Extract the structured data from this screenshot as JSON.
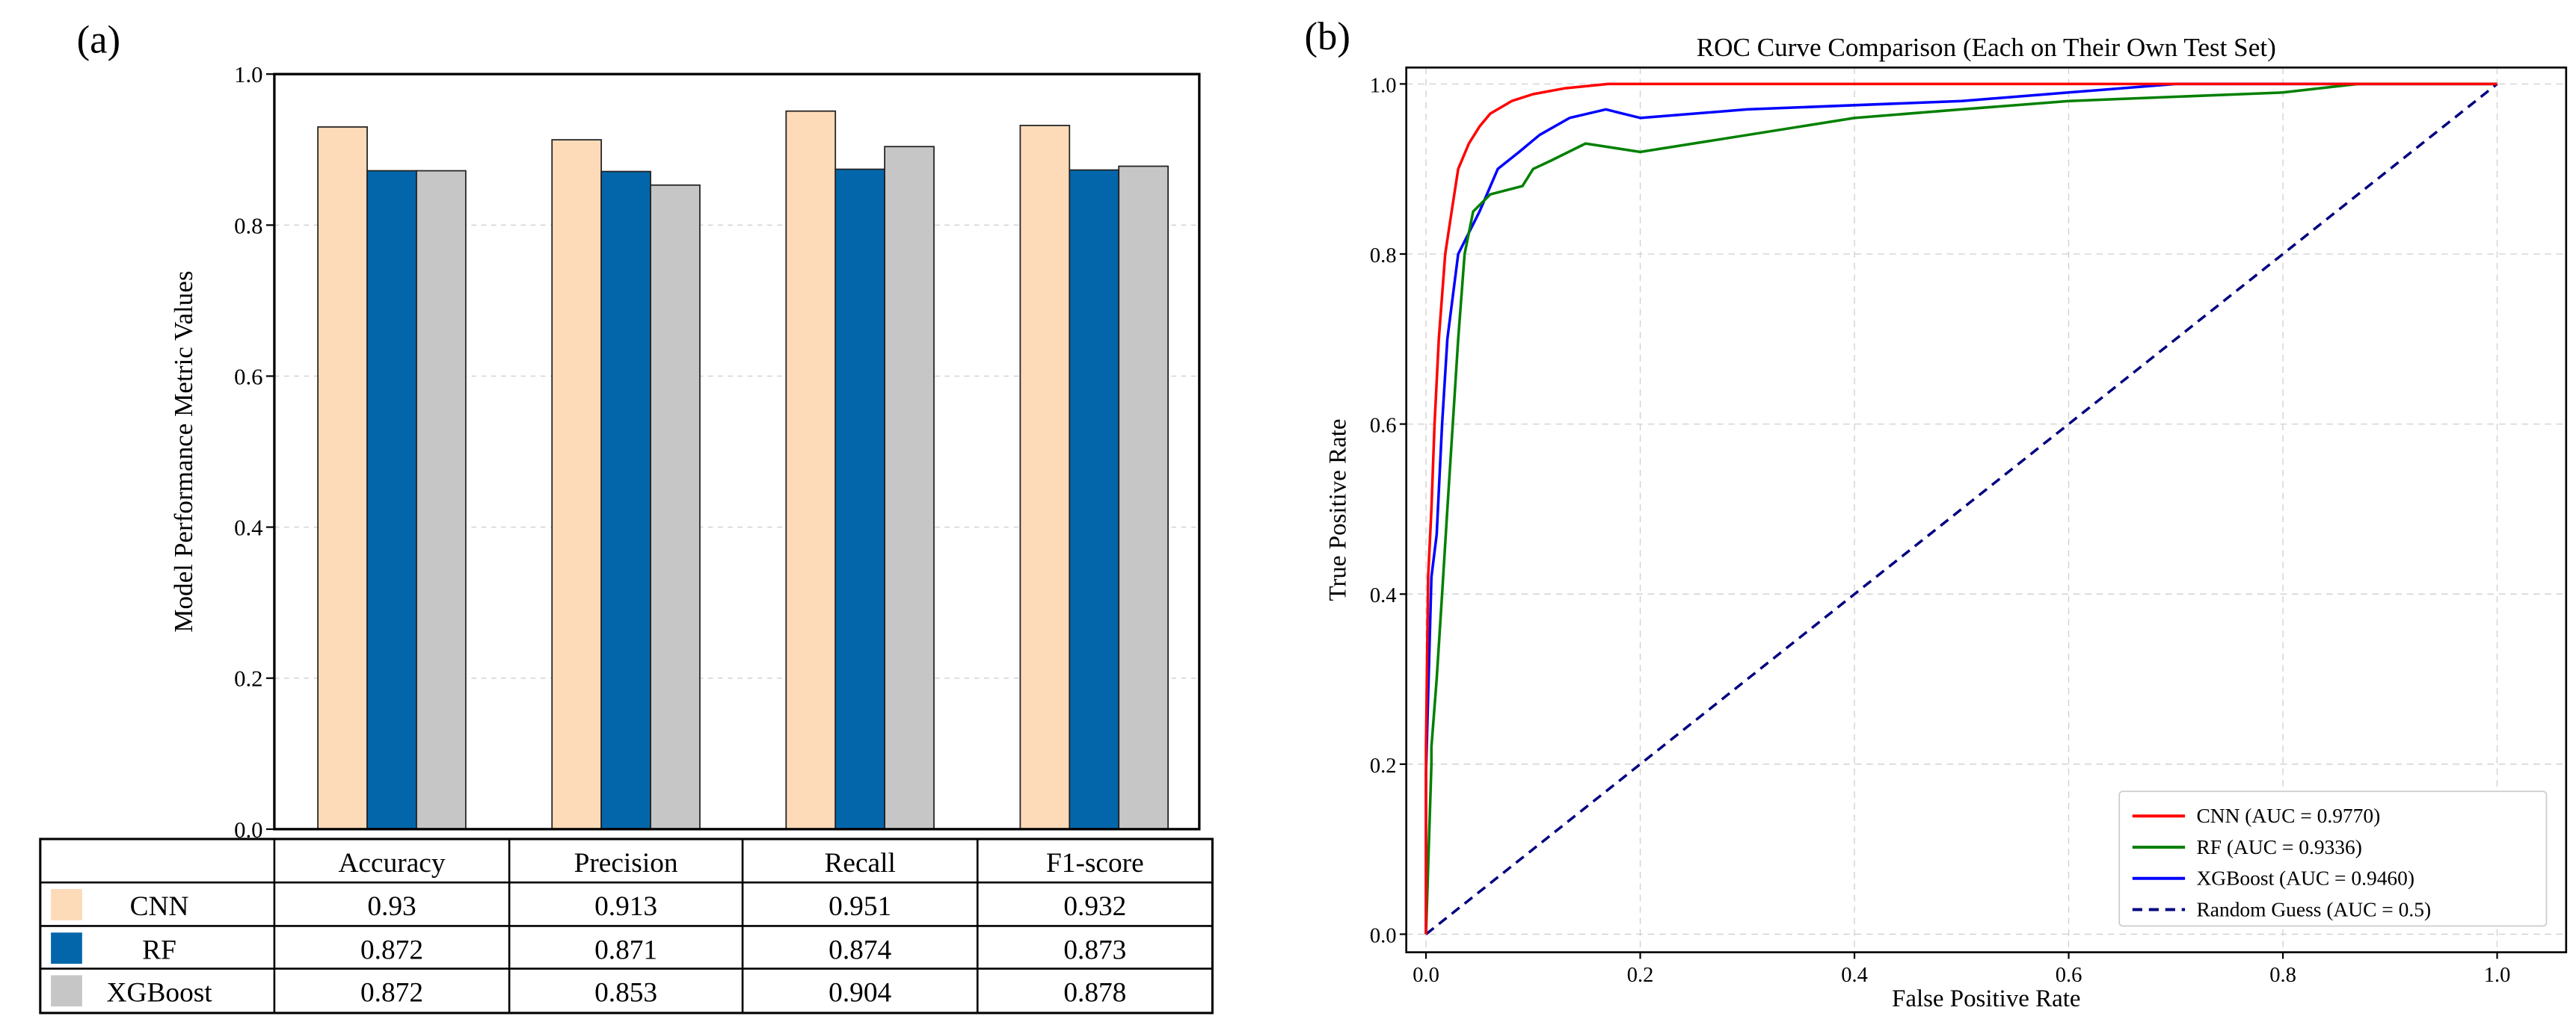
{
  "chart_data": [
    {
      "type": "bar",
      "panel_label": "(a)",
      "categories": [
        "Accuracy",
        "Precision",
        "Recall",
        "F1-score"
      ],
      "series": [
        {
          "name": "CNN",
          "values": [
            0.93,
            0.913,
            0.951,
            0.932
          ],
          "color": "#FDDAB8"
        },
        {
          "name": "RF",
          "values": [
            0.872,
            0.871,
            0.874,
            0.873
          ],
          "color": "#0466AA"
        },
        {
          "name": "XGBoost",
          "values": [
            0.872,
            0.853,
            0.904,
            0.878
          ],
          "color": "#C6C6C6"
        }
      ],
      "xlabel": "",
      "ylabel": "Model Performance Metric Values",
      "ylim": [
        0,
        1
      ],
      "yticks": [
        "0.0",
        "0.2",
        "0.4",
        "0.6",
        "0.8",
        "1.0"
      ],
      "grid": "horizontal dashed",
      "legend": "table below chart"
    },
    {
      "type": "line",
      "panel_label": "(b)",
      "title": "ROC Curve Comparison (Each on Their Own Test Set)",
      "xlabel": "False Positive Rate",
      "ylabel": "True Positive Rate",
      "xlim": [
        0,
        1
      ],
      "ylim": [
        0,
        1
      ],
      "xticks": [
        "0.0",
        "0.2",
        "0.4",
        "0.6",
        "0.8",
        "1.0"
      ],
      "yticks": [
        "0.0",
        "0.2",
        "0.4",
        "0.6",
        "0.8",
        "1.0"
      ],
      "grid": "both dashed",
      "legend": "bottom-right",
      "series": [
        {
          "name": "CNN",
          "label": "CNN (AUC = 0.9770)",
          "auc": 0.977,
          "color": "#FF0000",
          "dash": false,
          "points": [
            [
              0,
              0
            ],
            [
              0,
              0.22
            ],
            [
              0.002,
              0.42
            ],
            [
              0.005,
              0.5
            ],
            [
              0.008,
              0.6
            ],
            [
              0.012,
              0.7
            ],
            [
              0.018,
              0.8
            ],
            [
              0.024,
              0.85
            ],
            [
              0.03,
              0.9
            ],
            [
              0.04,
              0.93
            ],
            [
              0.05,
              0.95
            ],
            [
              0.06,
              0.965
            ],
            [
              0.08,
              0.98
            ],
            [
              0.1,
              0.988
            ],
            [
              0.13,
              0.995
            ],
            [
              0.17,
              1.0
            ],
            [
              1,
              1
            ]
          ]
        },
        {
          "name": "RF",
          "label": "RF (AUC = 0.9336)",
          "auc": 0.9336,
          "color": "#008000",
          "dash": false,
          "points": [
            [
              0,
              0
            ],
            [
              0.005,
              0.2
            ],
            [
              0.005,
              0.22
            ],
            [
              0.01,
              0.3
            ],
            [
              0.015,
              0.4
            ],
            [
              0.02,
              0.5
            ],
            [
              0.025,
              0.6
            ],
            [
              0.03,
              0.7
            ],
            [
              0.036,
              0.8
            ],
            [
              0.044,
              0.85
            ],
            [
              0.06,
              0.87
            ],
            [
              0.09,
              0.88
            ],
            [
              0.1,
              0.9
            ],
            [
              0.117,
              0.91
            ],
            [
              0.149,
              0.93
            ],
            [
              0.2,
              0.92
            ],
            [
              0.3,
              0.94
            ],
            [
              0.4,
              0.96
            ],
            [
              0.5,
              0.97
            ],
            [
              0.6,
              0.98
            ],
            [
              0.8,
              0.99
            ],
            [
              0.87,
              1.0
            ],
            [
              1,
              1
            ]
          ]
        },
        {
          "name": "XGBoost",
          "label": "XGBoost (AUC = 0.9460)",
          "auc": 0.946,
          "color": "#0000FF",
          "dash": false,
          "points": [
            [
              0,
              0
            ],
            [
              0,
              0.19
            ],
            [
              0.005,
              0.42
            ],
            [
              0.01,
              0.47
            ],
            [
              0.015,
              0.6
            ],
            [
              0.02,
              0.7
            ],
            [
              0.025,
              0.75
            ],
            [
              0.03,
              0.8
            ],
            [
              0.05,
              0.85
            ],
            [
              0.067,
              0.9
            ],
            [
              0.087,
              0.92
            ],
            [
              0.106,
              0.94
            ],
            [
              0.134,
              0.96
            ],
            [
              0.168,
              0.97
            ],
            [
              0.2,
              0.96
            ],
            [
              0.3,
              0.97
            ],
            [
              0.5,
              0.98
            ],
            [
              0.6,
              0.99
            ],
            [
              0.7,
              1.0
            ],
            [
              1,
              1
            ]
          ]
        },
        {
          "name": "Random Guess",
          "label": "Random Guess (AUC = 0.5)",
          "auc": 0.5,
          "color": "#000080",
          "dash": true,
          "points": [
            [
              0,
              0
            ],
            [
              1,
              1
            ]
          ]
        }
      ]
    }
  ]
}
